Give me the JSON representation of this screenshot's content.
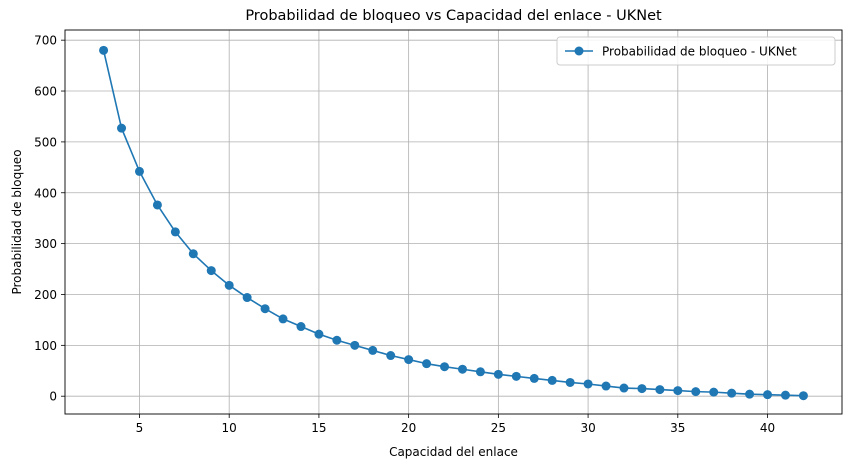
{
  "chart_data": {
    "type": "line",
    "title": "Probabilidad de bloqueo vs Capacidad del enlace - UKNet",
    "xlabel": "Capacidad del enlace",
    "ylabel": "Probabilidad de bloqueo",
    "xlim": [
      0.85,
      44.15
    ],
    "ylim": [
      -35,
      720
    ],
    "xticks": [
      5,
      10,
      15,
      20,
      25,
      30,
      35,
      40
    ],
    "yticks": [
      0,
      100,
      200,
      300,
      400,
      500,
      600,
      700
    ],
    "grid": true,
    "legend_position": "top-right",
    "series": [
      {
        "name": "Probabilidad de bloqueo - UKNet",
        "color": "#1f77b4",
        "marker": "circle",
        "x": [
          3,
          4,
          5,
          6,
          7,
          8,
          9,
          10,
          11,
          12,
          13,
          14,
          15,
          16,
          17,
          18,
          19,
          20,
          21,
          22,
          23,
          24,
          25,
          26,
          27,
          28,
          29,
          30,
          31,
          32,
          33,
          34,
          35,
          36,
          37,
          38,
          39,
          40,
          41,
          42
        ],
        "y": [
          680,
          527,
          442,
          376,
          323,
          280,
          247,
          218,
          194,
          172,
          152,
          137,
          122,
          110,
          100,
          90,
          80,
          72,
          64,
          58,
          53,
          48,
          43,
          39,
          35,
          31,
          27,
          24,
          20,
          16,
          15,
          13,
          11,
          9,
          8,
          6,
          4,
          3,
          2,
          1
        ]
      }
    ]
  }
}
